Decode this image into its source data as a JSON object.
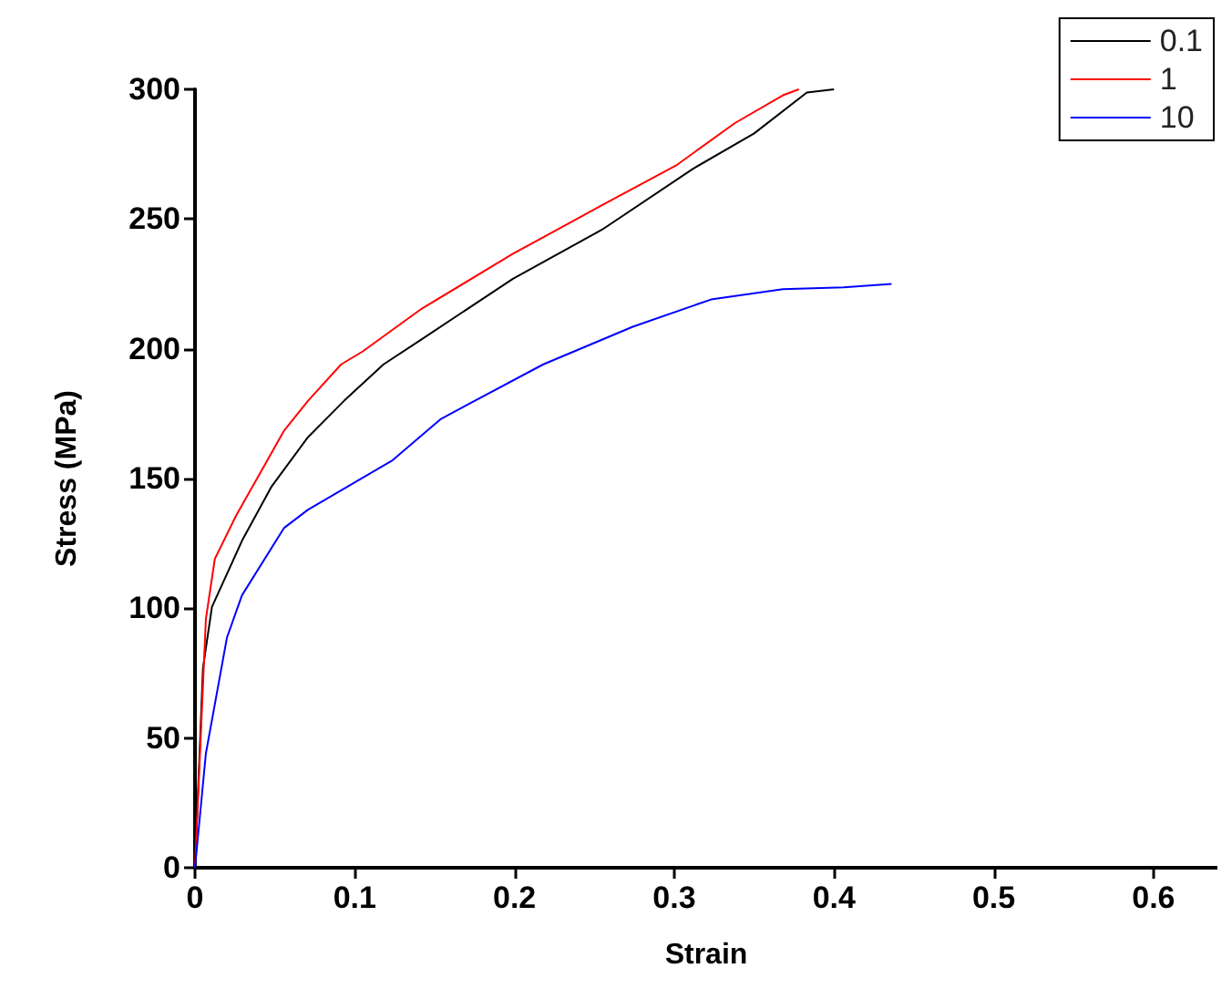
{
  "chart_data": {
    "type": "line",
    "xlabel": "Strain",
    "ylabel": "Stress (MPa)",
    "xlim": [
      0,
      0.64
    ],
    "ylim": [
      0,
      300
    ],
    "xticks": [
      0.0,
      0.1,
      0.2,
      0.3,
      0.4,
      0.5,
      0.6
    ],
    "yticks": [
      0,
      50,
      100,
      150,
      200,
      250,
      300
    ],
    "grid": false,
    "legend": "top right",
    "marker": "none",
    "line_style": "solid",
    "series": [
      {
        "name": "0.1",
        "color": "#000000",
        "x": [
          0,
          0.005,
          0.0106,
          0.0294,
          0.048,
          0.0708,
          0.0934,
          0.118,
          0.142,
          0.199,
          0.255,
          0.312,
          0.35,
          0.383,
          0.4
        ],
        "values": [
          0,
          77,
          100.5,
          126,
          147,
          166,
          180,
          194,
          203.7,
          227,
          246,
          269.5,
          283,
          298.8,
          300
        ]
      },
      {
        "name": "1",
        "color": "#ff0000",
        "x": [
          0,
          0.0068,
          0.0124,
          0.0257,
          0.0407,
          0.0558,
          0.0708,
          0.0915,
          0.105,
          0.142,
          0.199,
          0.255,
          0.301,
          0.338,
          0.368,
          0.378
        ],
        "values": [
          0,
          95.8,
          119,
          135.7,
          152,
          168.5,
          180,
          194,
          199,
          215.5,
          236.6,
          255.4,
          270.6,
          287,
          297.7,
          300
        ]
      },
      {
        "name": "10",
        "color": "#0000ff",
        "x": [
          0,
          0.0068,
          0.02,
          0.0294,
          0.0558,
          0.0708,
          0.1236,
          0.154,
          0.218,
          0.274,
          0.323,
          0.368,
          0.406,
          0.436
        ],
        "values": [
          0,
          44,
          88.7,
          105,
          131,
          138,
          157,
          173,
          194,
          208.5,
          219,
          223,
          223.7,
          225
        ]
      }
    ]
  }
}
